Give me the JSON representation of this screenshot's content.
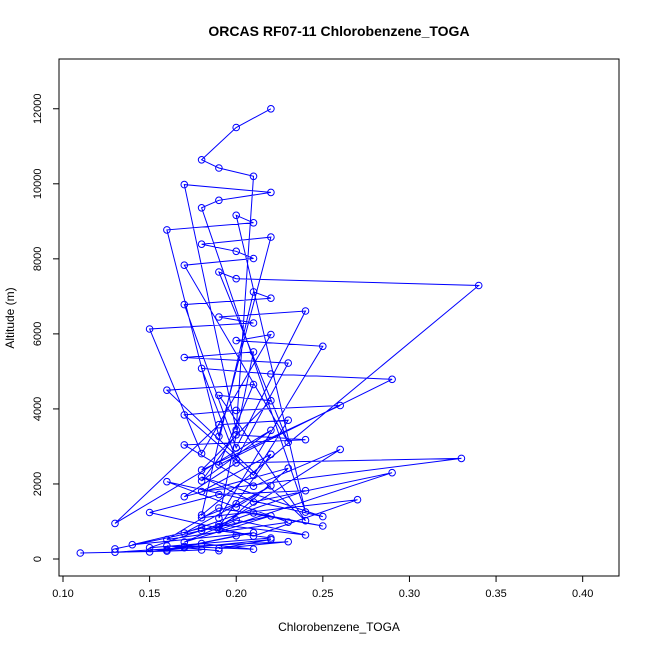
{
  "chart_data": {
    "type": "line",
    "title": "ORCAS RF07-11 Chlorobenzene_TOGA",
    "xlabel": "Chlorobenzene_TOGA",
    "ylabel": "Altitude (m)",
    "xlim": [
      0.1,
      0.41
    ],
    "ylim": [
      0,
      12500
    ],
    "xticks": [
      0.1,
      0.15,
      0.2,
      0.25,
      0.3,
      0.35,
      0.4
    ],
    "xtick_labels": [
      "0.10",
      "0.15",
      "0.20",
      "0.25",
      "0.30",
      "0.35",
      "0.40"
    ],
    "yticks": [
      0,
      2000,
      4000,
      6000,
      8000,
      10000,
      12000
    ],
    "ytick_labels": [
      "0",
      "2000",
      "4000",
      "6000",
      "8000",
      "10000",
      "12000"
    ],
    "grid": false,
    "markers": "open-circle",
    "color": "#0000ff",
    "series": [
      {
        "x": [
          0.11,
          0.16,
          0.18,
          0.13,
          0.17,
          0.19,
          0.16,
          0.21,
          0.18,
          0.15,
          0.22,
          0.19,
          0.23,
          0.17,
          0.2,
          0.16,
          0.21,
          0.14,
          0.18,
          0.22,
          0.15,
          0.19,
          0.24,
          0.2,
          0.17,
          0.22,
          0.13,
          0.18,
          0.21,
          0.25,
          0.19,
          0.16,
          0.23,
          0.2,
          0.18,
          0.27,
          0.21,
          0.15,
          0.19,
          0.24,
          0.17,
          0.22,
          0.2,
          0.16,
          0.25,
          0.18,
          0.21,
          0.29,
          0.19,
          0.23,
          0.17,
          0.2,
          0.33,
          0.18,
          0.22,
          0.19,
          0.26,
          0.21,
          0.17,
          0.24,
          0.2,
          0.18,
          0.22,
          0.13,
          0.19,
          0.23,
          0.21,
          0.17,
          0.2,
          0.26,
          0.18,
          0.22,
          0.19,
          0.24,
          0.16,
          0.21,
          0.19,
          0.29,
          0.22,
          0.18,
          0.2,
          0.23,
          0.17,
          0.21,
          0.19,
          0.25,
          0.2,
          0.22,
          0.18,
          0.15,
          0.21,
          0.19,
          0.24,
          0.2,
          0.17,
          0.22,
          0.21,
          0.18,
          0.34,
          0.2,
          0.19,
          0.23,
          0.17,
          0.21,
          0.2,
          0.18,
          0.22,
          0.19,
          0.16,
          0.21,
          0.2,
          0.24,
          0.18,
          0.19,
          0.22,
          0.17,
          0.2,
          0.21,
          0.19,
          0.18,
          0.2,
          0.22
        ],
        "y": [
          160,
          210,
          240,
          180,
          300,
          220,
          350,
          260,
          410,
          190,
          520,
          280,
          460,
          330,
          620,
          240,
          700,
          380,
          820,
          560,
          300,
          920,
          640,
          1040,
          450,
          1150,
          270,
          760,
          1230,
          880,
          1360,
          520,
          980,
          1470,
          1100,
          1580,
          610,
          1240,
          1720,
          1820,
          690,
          1950,
          1380,
          2060,
          1130,
          2190,
          1520,
          2300,
          780,
          2420,
          1660,
          2560,
          2680,
          1800,
          2790,
          860,
          2920,
          1940,
          3040,
          3180,
          3310,
          2080,
          3430,
          950,
          3580,
          3700,
          2230,
          3840,
          3960,
          4090,
          2370,
          4220,
          4360,
          1020,
          4500,
          4650,
          2510,
          4790,
          4930,
          5080,
          2660,
          5220,
          5370,
          5520,
          1090,
          5670,
          5820,
          5980,
          2810,
          6130,
          6290,
          6450,
          6610,
          2960,
          6780,
          6950,
          7120,
          1170,
          7290,
          7470,
          7650,
          3110,
          7830,
          8010,
          8200,
          8390,
          8580,
          3270,
          8770,
          8960,
          9160,
          1250,
          9360,
          9560,
          9770,
          9980,
          3440,
          10200,
          10420,
          10640,
          11500,
          12000
        ]
      }
    ]
  }
}
